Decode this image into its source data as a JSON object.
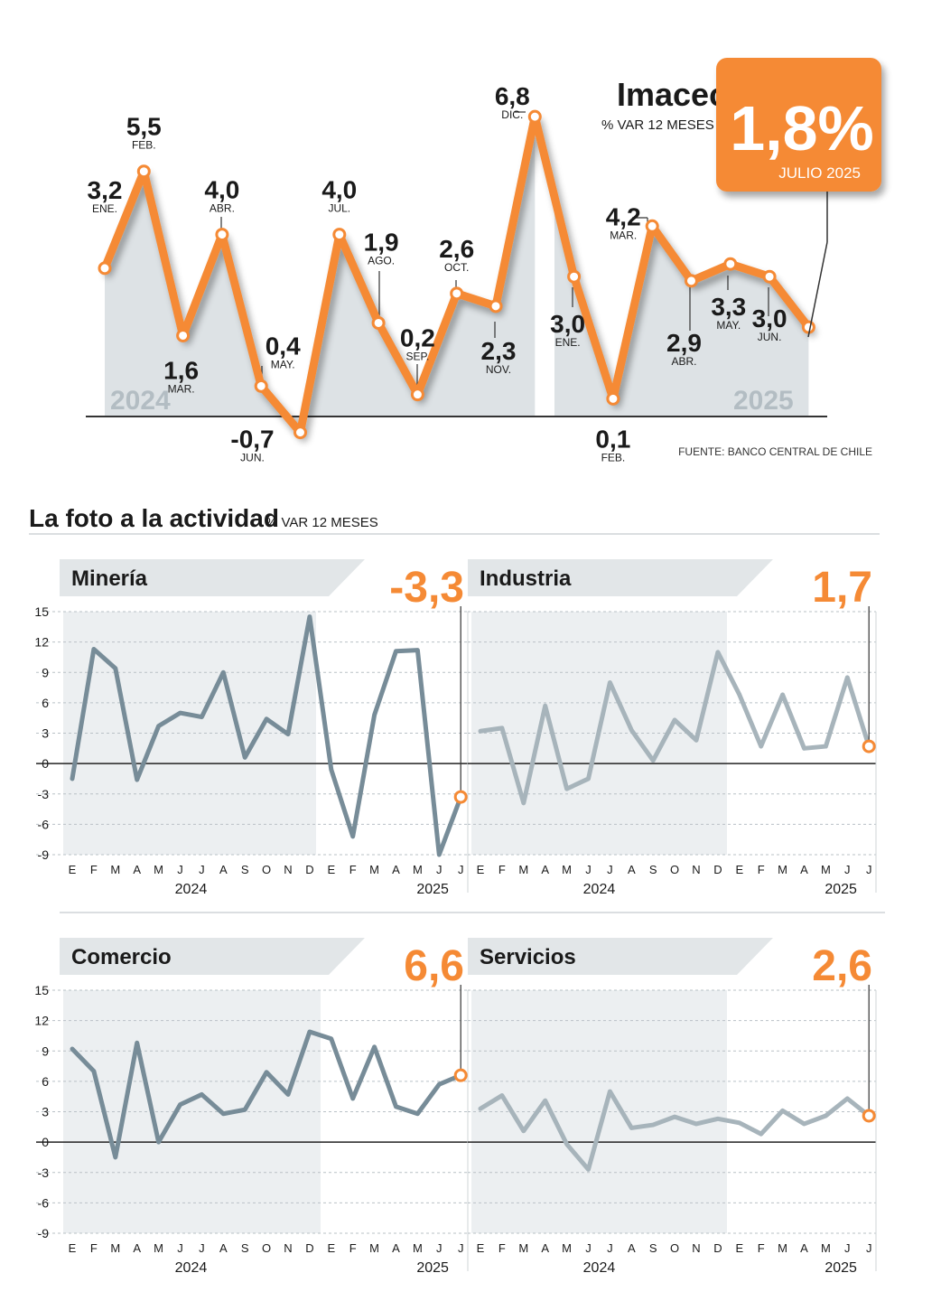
{
  "imacec": {
    "title": "Imacec",
    "subtitle": "% VAR 12 MESES",
    "headline_value": "1,8%",
    "headline_period": "JULIO 2025",
    "source": "FUENTE: BANCO CENTRAL DE CHILE",
    "colors": {
      "line": "#f58a35",
      "area": "#dde2e5",
      "badge": "#f58a35"
    }
  },
  "section": {
    "title": "La foto a la actividad",
    "subtitle": "% VAR 12 MESES"
  },
  "chart_data": [
    {
      "type": "line",
      "name": "imacec",
      "title": "Imacec",
      "ylabel": "% VAR 12 MESES",
      "year_labels": [
        "2024",
        "2025"
      ],
      "x": [
        "ENE.",
        "FEB.",
        "MAR.",
        "ABR.",
        "MAY.",
        "JUN.",
        "JUL.",
        "AGO.",
        "SEP.",
        "OCT.",
        "NOV.",
        "DIC.",
        "ENE.",
        "FEB.",
        "MAR.",
        "ABR.",
        "MAY.",
        "JUN.",
        "JUL."
      ],
      "years": [
        "2024",
        "2024",
        "2024",
        "2024",
        "2024",
        "2024",
        "2024",
        "2024",
        "2024",
        "2024",
        "2024",
        "2024",
        "2025",
        "2025",
        "2025",
        "2025",
        "2025",
        "2025",
        "2025"
      ],
      "values": [
        3.2,
        5.5,
        1.6,
        4.0,
        0.4,
        -0.7,
        4.0,
        1.9,
        0.2,
        2.6,
        2.3,
        6.8,
        3.0,
        0.1,
        4.2,
        2.9,
        3.3,
        3.0,
        1.8
      ],
      "value_labels": [
        "3,2",
        "5,5",
        "1,6",
        "4,0",
        "0,4",
        "-0,7",
        "4,0",
        "1,9",
        "0,2",
        "2,6",
        "2,3",
        "6,8",
        "3,0",
        "0,1",
        "4,2",
        "2,9",
        "3,3",
        "3,0",
        ""
      ],
      "month_labels": [
        "ENE.",
        "FEB.",
        "MAR.",
        "ABR.",
        "MAY.",
        "JUN.",
        "JUL.",
        "AGO.",
        "SEP.",
        "OCT.",
        "NOV.",
        "DIC.",
        "ENE.",
        "FEB.",
        "MAR.",
        "ABR.",
        "MAY.",
        "JUN.",
        ""
      ]
    },
    {
      "type": "line",
      "name": "mineria",
      "title": "Minería",
      "last_value": "-3,3",
      "color": "#778c98",
      "x": [
        "E",
        "F",
        "M",
        "A",
        "M",
        "J",
        "J",
        "A",
        "S",
        "O",
        "N",
        "D",
        "E",
        "F",
        "M",
        "A",
        "M",
        "J",
        "J"
      ],
      "years": [
        "2024",
        "2025"
      ],
      "values": [
        -1.5,
        11.3,
        9.4,
        -1.6,
        3.7,
        5.0,
        4.6,
        9.0,
        0.6,
        4.4,
        2.9,
        14.5,
        -0.6,
        -7.2,
        4.8,
        11.1,
        11.2,
        -9.0,
        -3.3
      ],
      "ylim": [
        -9,
        15
      ],
      "yticks": [
        15,
        12,
        9,
        6,
        3,
        0,
        -3,
        -6,
        -9
      ]
    },
    {
      "type": "line",
      "name": "industria",
      "title": "Industria",
      "last_value": "1,7",
      "color": "#a7b4bb",
      "x": [
        "E",
        "F",
        "M",
        "A",
        "M",
        "J",
        "J",
        "A",
        "S",
        "O",
        "N",
        "D",
        "E",
        "F",
        "M",
        "A",
        "M",
        "J",
        "J"
      ],
      "years": [
        "2024",
        "2025"
      ],
      "values": [
        3.2,
        3.5,
        -3.9,
        5.7,
        -2.5,
        -1.5,
        8.0,
        3.3,
        0.3,
        4.3,
        2.3,
        11.0,
        6.8,
        1.7,
        6.8,
        1.5,
        1.7,
        8.5,
        1.7
      ],
      "ylim": [
        -9,
        15
      ],
      "yticks": [
        15,
        12,
        9,
        6,
        3,
        0,
        -3,
        -6,
        -9
      ]
    },
    {
      "type": "line",
      "name": "comercio",
      "title": "Comercio",
      "last_value": "6,6",
      "color": "#778c98",
      "x": [
        "E",
        "F",
        "M",
        "A",
        "M",
        "J",
        "J",
        "A",
        "S",
        "O",
        "N",
        "D",
        "E",
        "F",
        "M",
        "A",
        "M",
        "J",
        "J"
      ],
      "years": [
        "2024",
        "2025"
      ],
      "values": [
        9.2,
        7.0,
        -1.5,
        9.8,
        0.0,
        3.7,
        4.7,
        2.8,
        3.2,
        6.9,
        4.7,
        10.9,
        10.2,
        4.3,
        9.4,
        3.5,
        2.8,
        5.7,
        6.6
      ],
      "ylim": [
        -9,
        15
      ],
      "yticks": [
        15,
        12,
        9,
        6,
        3,
        0,
        -3,
        -6,
        -9
      ]
    },
    {
      "type": "line",
      "name": "servicios",
      "title": "Servicios",
      "last_value": "2,6",
      "color": "#a7b4bb",
      "x": [
        "E",
        "F",
        "M",
        "A",
        "M",
        "J",
        "J",
        "A",
        "S",
        "O",
        "N",
        "D",
        "E",
        "F",
        "M",
        "A",
        "M",
        "J",
        "J"
      ],
      "years": [
        "2024",
        "2025"
      ],
      "values": [
        3.3,
        4.6,
        1.1,
        4.1,
        -0.2,
        -2.7,
        5.0,
        1.4,
        1.7,
        2.5,
        1.8,
        2.3,
        1.9,
        0.8,
        3.1,
        1.8,
        2.6,
        4.3,
        2.6
      ],
      "ylim": [
        -9,
        15
      ],
      "yticks": [
        15,
        12,
        9,
        6,
        3,
        0,
        -3,
        -6,
        -9
      ]
    }
  ]
}
